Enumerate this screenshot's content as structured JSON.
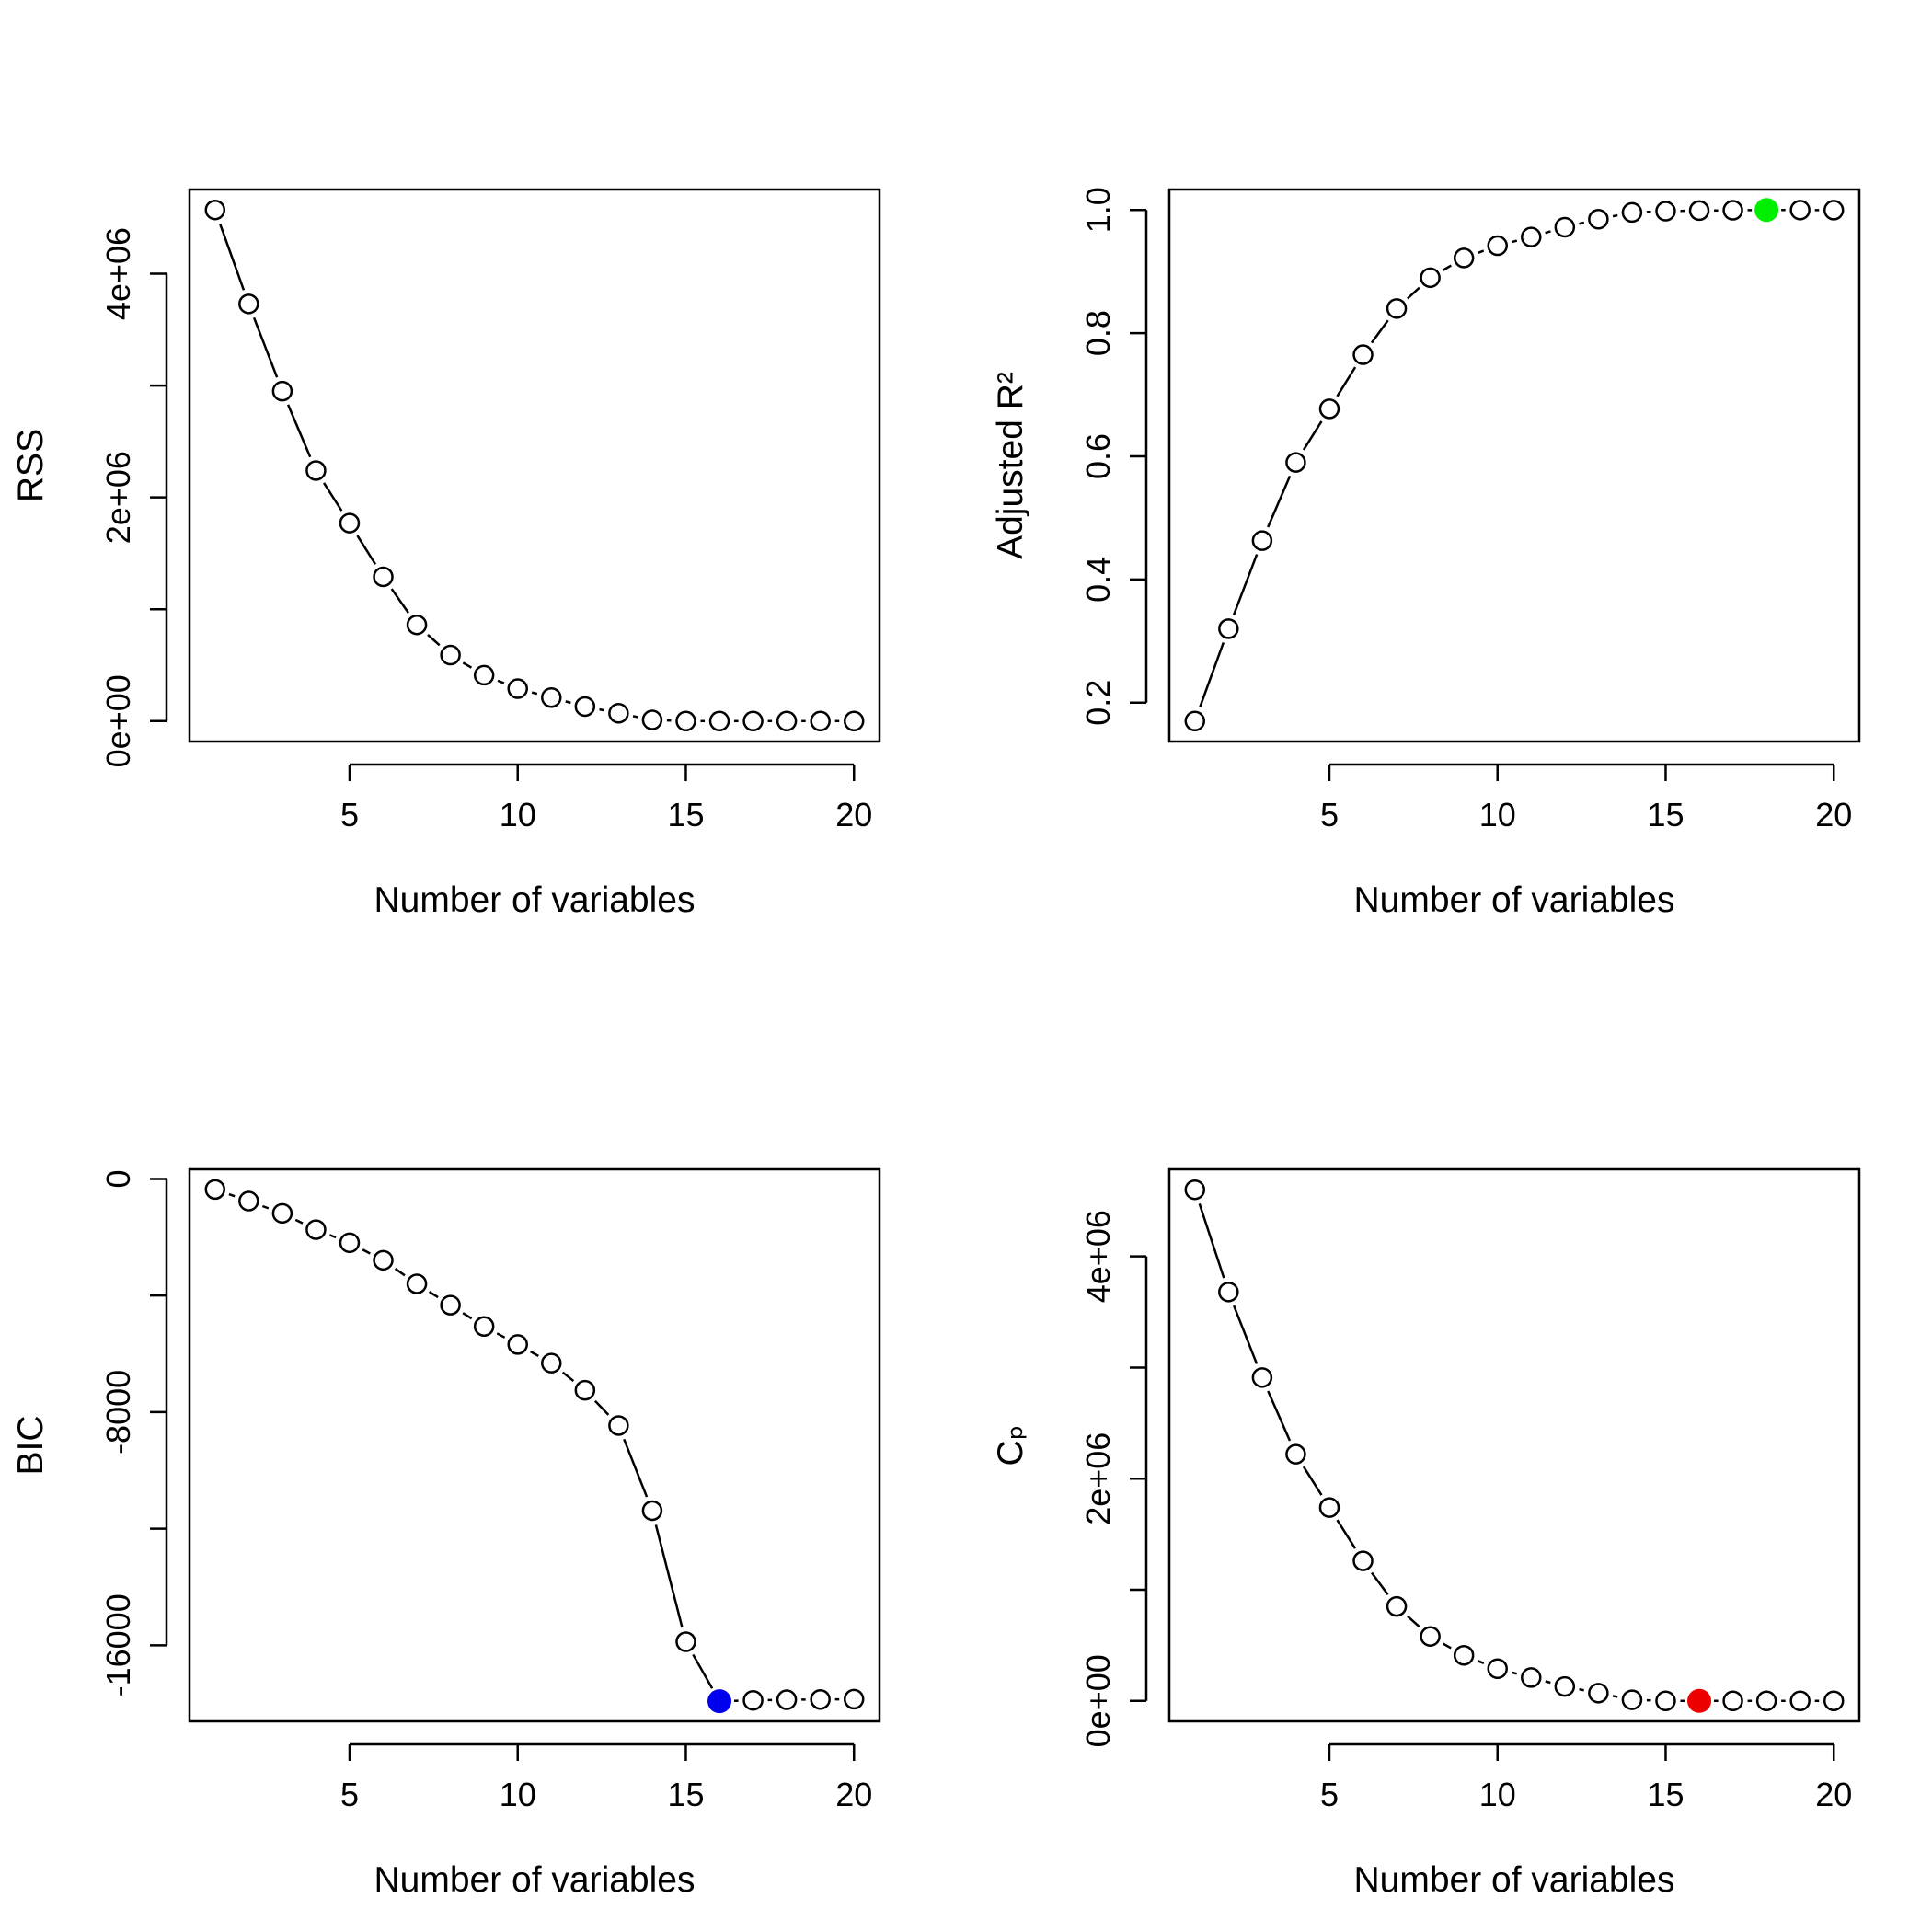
{
  "chart_data": [
    {
      "id": "rss",
      "type": "scatter",
      "xlabel": "Number of variables",
      "ylabel": "RSS",
      "x": [
        1,
        2,
        3,
        4,
        5,
        6,
        7,
        8,
        9,
        10,
        11,
        12,
        13,
        14,
        15,
        16,
        17,
        18,
        19,
        20
      ],
      "y": [
        4570000,
        3730000,
        2950000,
        2240000,
        1770000,
        1290000,
        860000,
        590000,
        410000,
        290000,
        210000,
        130000,
        70000,
        10000,
        0,
        0,
        0,
        0,
        0,
        0
      ],
      "xlim": [
        0.24,
        20.76
      ],
      "ylim": [
        -182800,
        4752800
      ],
      "xticks": [
        5,
        10,
        15,
        20
      ],
      "xtick_labels": [
        "5",
        "10",
        "15",
        "20"
      ],
      "yticks": [
        0,
        1000000,
        2000000,
        3000000,
        4000000
      ],
      "ytick_labels": [
        "0e+00",
        "",
        "2e+06",
        "",
        "4e+06"
      ],
      "connector": "dashed-line",
      "highlight": null,
      "grid": false
    },
    {
      "id": "adjr2",
      "type": "scatter",
      "xlabel": "Number of variables",
      "ylabel": "Adjusted R²",
      "x": [
        1,
        2,
        3,
        4,
        5,
        6,
        7,
        8,
        9,
        10,
        11,
        12,
        13,
        14,
        15,
        16,
        17,
        18,
        19,
        20
      ],
      "y": [
        0.17,
        0.32,
        0.463,
        0.59,
        0.677,
        0.765,
        0.84,
        0.89,
        0.922,
        0.942,
        0.956,
        0.972,
        0.985,
        0.996,
        0.998,
        0.999,
        0.9995,
        1.0,
        0.9998,
        0.9997
      ],
      "xlim": [
        0.24,
        20.76
      ],
      "ylim": [
        0.1368,
        1.0332
      ],
      "xticks": [
        5,
        10,
        15,
        20
      ],
      "xtick_labels": [
        "5",
        "10",
        "15",
        "20"
      ],
      "yticks": [
        0.2,
        0.4,
        0.6,
        0.8,
        1.0
      ],
      "ytick_labels": [
        "0.2",
        "0.4",
        "0.6",
        "0.8",
        "1.0"
      ],
      "connector": "dashed-line",
      "highlight": {
        "index": 17,
        "color": "#00ee00"
      },
      "grid": false
    },
    {
      "id": "bic",
      "type": "scatter",
      "xlabel": "Number of variables",
      "ylabel": "BIC",
      "x": [
        1,
        2,
        3,
        4,
        5,
        6,
        7,
        8,
        9,
        10,
        11,
        12,
        13,
        14,
        15,
        16,
        17,
        18,
        19,
        20
      ],
      "y": [
        -360,
        -760,
        -1180,
        -1740,
        -2190,
        -2790,
        -3600,
        -4330,
        -5060,
        -5680,
        -6320,
        -7250,
        -8460,
        -11380,
        -15880,
        -17920,
        -17890,
        -17870,
        -17860,
        -17850
      ],
      "xlim": [
        0.24,
        20.76
      ],
      "ylim": [
        -18610,
        330
      ],
      "xticks": [
        5,
        10,
        15,
        20
      ],
      "xtick_labels": [
        "5",
        "10",
        "15",
        "20"
      ],
      "yticks": [
        0,
        -4000,
        -8000,
        -12000,
        -16000
      ],
      "ytick_labels": [
        "0",
        "",
        "-8000",
        "",
        "-16000"
      ],
      "connector": "dashed-line",
      "highlight": {
        "index": 15,
        "color": "#0000ee"
      },
      "grid": false
    },
    {
      "id": "cp",
      "type": "scatter",
      "xlabel": "Number of variables",
      "ylabel": "Cₚ",
      "x": [
        1,
        2,
        3,
        4,
        5,
        6,
        7,
        8,
        9,
        10,
        11,
        12,
        13,
        14,
        15,
        16,
        17,
        18,
        19,
        20
      ],
      "y": [
        4600000,
        3680000,
        2910000,
        2220000,
        1740000,
        1260000,
        850000,
        580000,
        410000,
        290000,
        210000,
        130000,
        70000,
        10000,
        0,
        0,
        0,
        0,
        0,
        0
      ],
      "xlim": [
        0.24,
        20.76
      ],
      "ylim": [
        -184000,
        4784000
      ],
      "xticks": [
        5,
        10,
        15,
        20
      ],
      "xtick_labels": [
        "5",
        "10",
        "15",
        "20"
      ],
      "yticks": [
        0,
        1000000,
        2000000,
        3000000,
        4000000
      ],
      "ytick_labels": [
        "0e+00",
        "",
        "2e+06",
        "",
        "4e+06"
      ],
      "connector": "dashed-line",
      "highlight": {
        "index": 15,
        "color": "#ee0000"
      },
      "grid": false
    }
  ]
}
